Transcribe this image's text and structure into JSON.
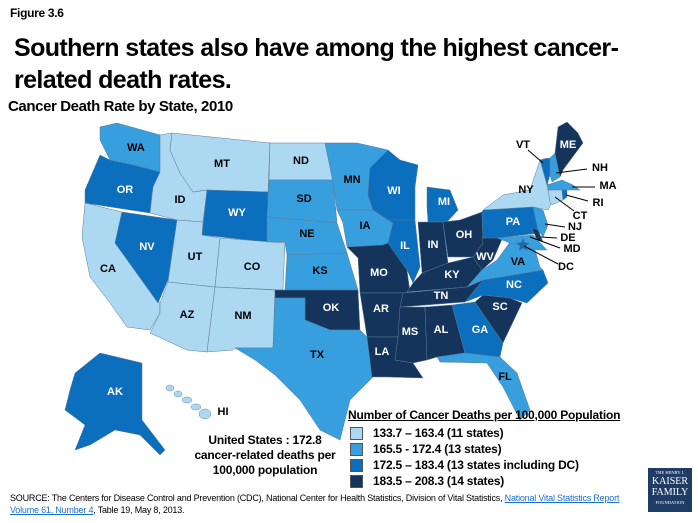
{
  "figure_label": "Figure 3.6",
  "title_line1": "Southern states also have among the highest cancer-",
  "title_line2": "related death rates.",
  "subtitle": "Cancer Death Rate by State, 2010",
  "us_summary": {
    "line1": "United States : 172.8",
    "line2": "cancer-related deaths per",
    "line3": "100,000 population"
  },
  "legend": {
    "title": "Number of Cancer Deaths per 100,000 Population",
    "bins": [
      {
        "label": "133.7 – 163.4 (11 states)",
        "color": "#acd8f1"
      },
      {
        "label": "165.5 - 172.4 (13 states)",
        "color": "#389fdf"
      },
      {
        "label": "172.5 – 183.4 (13 states including DC)",
        "color": "#0b6fbe"
      },
      {
        "label": "183.5 – 208.3 (14 states)",
        "color": "#15345b"
      }
    ]
  },
  "map": {
    "states": [
      {
        "abbr": "WA",
        "bin": 1
      },
      {
        "abbr": "OR",
        "bin": 2
      },
      {
        "abbr": "CA",
        "bin": 0
      },
      {
        "abbr": "NV",
        "bin": 2
      },
      {
        "abbr": "ID",
        "bin": 0
      },
      {
        "abbr": "MT",
        "bin": 0
      },
      {
        "abbr": "WY",
        "bin": 2
      },
      {
        "abbr": "UT",
        "bin": 0
      },
      {
        "abbr": "CO",
        "bin": 0
      },
      {
        "abbr": "AZ",
        "bin": 0
      },
      {
        "abbr": "NM",
        "bin": 0
      },
      {
        "abbr": "ND",
        "bin": 0
      },
      {
        "abbr": "SD",
        "bin": 1
      },
      {
        "abbr": "NE",
        "bin": 1
      },
      {
        "abbr": "KS",
        "bin": 1
      },
      {
        "abbr": "OK",
        "bin": 3
      },
      {
        "abbr": "TX",
        "bin": 1
      },
      {
        "abbr": "MN",
        "bin": 1
      },
      {
        "abbr": "IA",
        "bin": 1
      },
      {
        "abbr": "MO",
        "bin": 3
      },
      {
        "abbr": "AR",
        "bin": 3
      },
      {
        "abbr": "LA",
        "bin": 3
      },
      {
        "abbr": "WI",
        "bin": 2
      },
      {
        "abbr": "IL",
        "bin": 2
      },
      {
        "abbr": "MI",
        "bin": 2
      },
      {
        "abbr": "IN",
        "bin": 3
      },
      {
        "abbr": "OH",
        "bin": 3
      },
      {
        "abbr": "KY",
        "bin": 3
      },
      {
        "abbr": "TN",
        "bin": 3
      },
      {
        "abbr": "MS",
        "bin": 3
      },
      {
        "abbr": "AL",
        "bin": 3
      },
      {
        "abbr": "GA",
        "bin": 2
      },
      {
        "abbr": "FL",
        "bin": 1
      },
      {
        "abbr": "SC",
        "bin": 3
      },
      {
        "abbr": "NC",
        "bin": 2
      },
      {
        "abbr": "VA",
        "bin": 1
      },
      {
        "abbr": "WV",
        "bin": 3
      },
      {
        "abbr": "PA",
        "bin": 2
      },
      {
        "abbr": "NY",
        "bin": 0
      },
      {
        "abbr": "VT",
        "bin": 2
      },
      {
        "abbr": "NH",
        "bin": 1
      },
      {
        "abbr": "ME",
        "bin": 3
      },
      {
        "abbr": "MA",
        "bin": 1
      },
      {
        "abbr": "CT",
        "bin": 0
      },
      {
        "abbr": "RI",
        "bin": 2
      },
      {
        "abbr": "NJ",
        "bin": 1
      },
      {
        "abbr": "DE",
        "bin": 3
      },
      {
        "abbr": "MD",
        "bin": 1
      },
      {
        "abbr": "DC",
        "bin": 2
      },
      {
        "abbr": "AK",
        "bin": 2
      },
      {
        "abbr": "HI",
        "bin": 0
      }
    ]
  },
  "source": {
    "prefix": "SOURCE: The Centers for Disease Control and Prevention (CDC), National Center for Health Statistics, Division of Vital Statistics, ",
    "link_text": "National Vital Statistics Report Volume 61, Number 4",
    "suffix": ", Table 19, May 8, 2013."
  },
  "logo": {
    "line1": "THE HENRY J.",
    "line2": "KAISER",
    "line3": "FAMILY",
    "line4": "FOUNDATION"
  }
}
